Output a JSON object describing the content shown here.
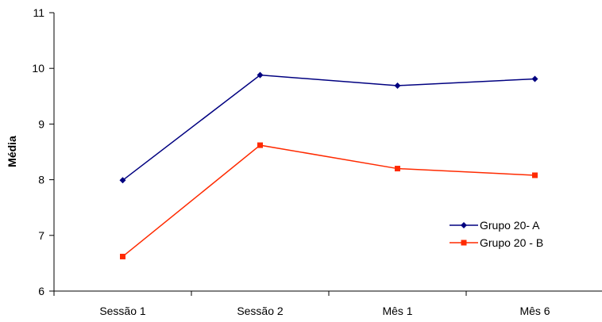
{
  "chart_data": {
    "type": "line",
    "title": "",
    "xlabel": "",
    "ylabel": "Média",
    "categories": [
      "Sessão 1",
      "Sessão 2",
      "Mês 1",
      "Mês 6"
    ],
    "ylim": [
      6,
      11
    ],
    "yticks": [
      6,
      7,
      8,
      9,
      10,
      11
    ],
    "grid": false,
    "legend_position": "right",
    "series": [
      {
        "name": "Grupo 20- A",
        "values": [
          7.99,
          9.88,
          9.69,
          9.81
        ],
        "color": "#000080",
        "marker": "diamond"
      },
      {
        "name": "Grupo 20 - B",
        "values": [
          6.62,
          8.62,
          8.2,
          8.08
        ],
        "color": "#ff2a00",
        "marker": "square"
      }
    ]
  }
}
